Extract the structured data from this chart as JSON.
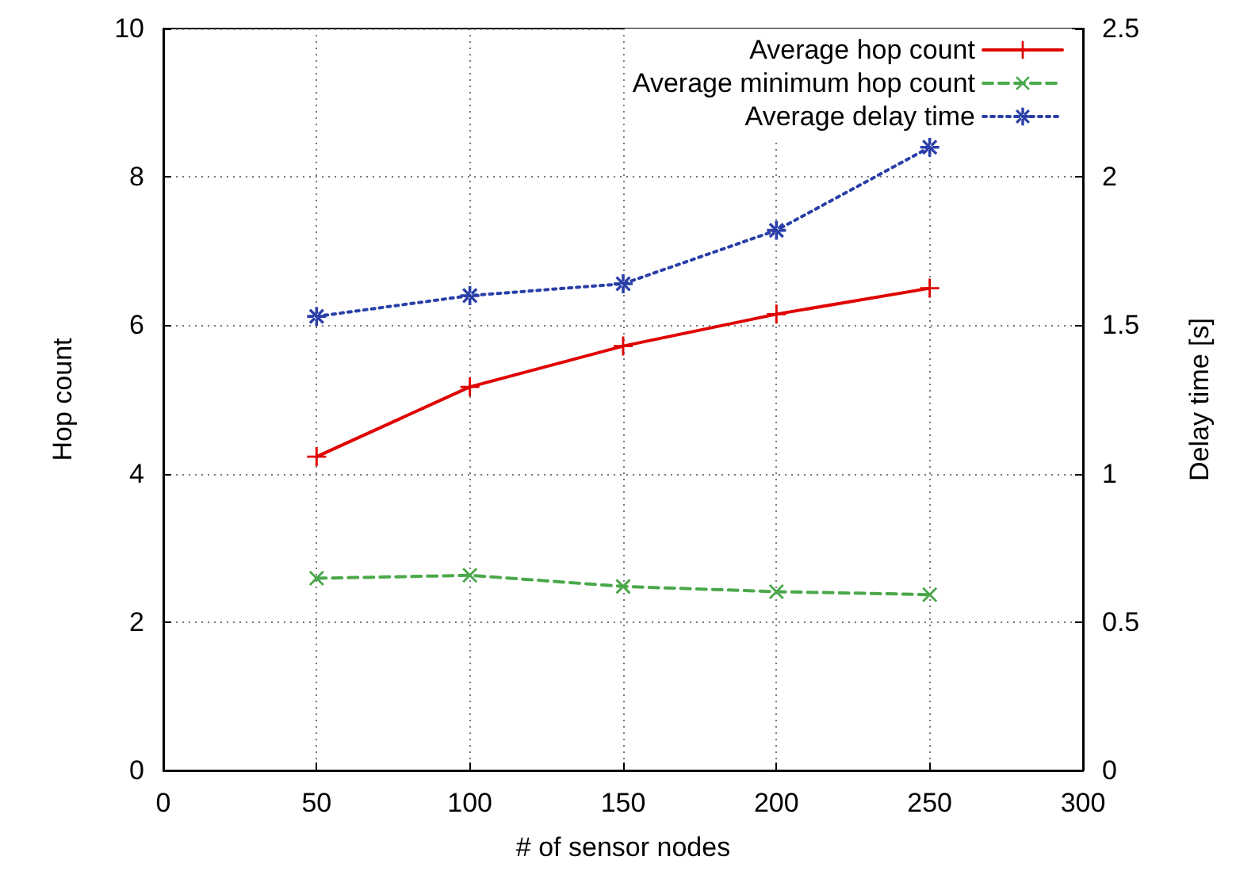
{
  "chart_data": {
    "type": "line",
    "xlabel": "# of sensor nodes",
    "ylabel": "Hop count",
    "y2label": "Delay time [s]",
    "x": [
      50,
      100,
      150,
      200,
      250
    ],
    "series": [
      {
        "name": "Average hop count",
        "color": "#e00000",
        "values": [
          4.23,
          5.17,
          5.72,
          6.15,
          6.5
        ],
        "marker": "cross",
        "line_style": "solid"
      },
      {
        "name": "Average minimum hop count",
        "color": "#4aa84a",
        "values": [
          2.59,
          2.63,
          2.48,
          2.41,
          2.37
        ],
        "marker": "x",
        "line_style": "dashed"
      },
      {
        "name": "Average delay time",
        "color": "#2a3fa8",
        "values": [
          1.53,
          1.6,
          1.64,
          1.82,
          2.1
        ],
        "marker": "star",
        "line_style": "dotted",
        "axis": "y2"
      }
    ],
    "xlim": [
      0,
      300
    ],
    "xticks": [
      0,
      50,
      100,
      150,
      200,
      250,
      300
    ],
    "ylim": [
      0,
      10
    ],
    "yticks": [
      0,
      2,
      4,
      6,
      8,
      10
    ],
    "y2lim": [
      0,
      2.5
    ],
    "y2ticks": [
      0,
      0.5,
      1,
      1.5,
      2,
      2.5
    ],
    "grid": true,
    "legend": "top right"
  }
}
